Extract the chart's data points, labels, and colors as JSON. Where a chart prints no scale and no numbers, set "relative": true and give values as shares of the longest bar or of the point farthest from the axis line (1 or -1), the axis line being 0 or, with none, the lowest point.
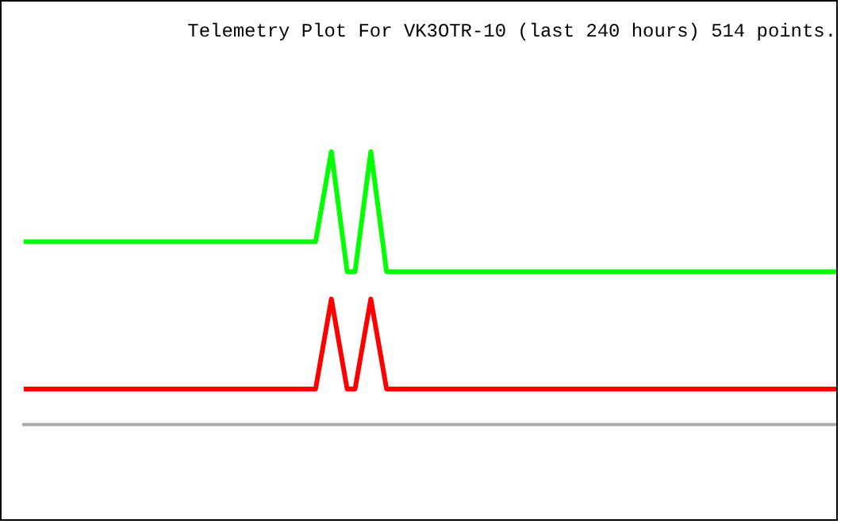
{
  "chart_data": {
    "type": "line",
    "title": "Telemetry Plot For VK3OTR-10 (last 240 hours) 514 points.",
    "relative": true,
    "grid": false,
    "legend": false,
    "marker": "none",
    "line_style": "solid",
    "categories": [
      null,
      null,
      null,
      null,
      null,
      null,
      null,
      null,
      null,
      null,
      null,
      null,
      null,
      null,
      null,
      null,
      null,
      null,
      null,
      null,
      null,
      null,
      null,
      null,
      null,
      null,
      null,
      null,
      null,
      null,
      null,
      null,
      null,
      null,
      null,
      null,
      null,
      null,
      null,
      null,
      null,
      null,
      null,
      null,
      null,
      null,
      null,
      null,
      null,
      null,
      null,
      null,
      null,
      null,
      null,
      null,
      null,
      null,
      null,
      null,
      null,
      null,
      null,
      null,
      null,
      null,
      null,
      null,
      null,
      null,
      null,
      null,
      null,
      null,
      null,
      null,
      null,
      null,
      null,
      null,
      null,
      null,
      null,
      null,
      null,
      null,
      null,
      null,
      null,
      null,
      null,
      null,
      null,
      null,
      null,
      null,
      null,
      null,
      null,
      null,
      null,
      null,
      null,
      null
    ],
    "series": [
      {
        "color": "#00ff00",
        "values": [
          0.67,
          0.67,
          0.67,
          0.67,
          0.67,
          0.67,
          0.67,
          0.67,
          0.67,
          0.67,
          0.67,
          0.67,
          0.67,
          0.67,
          0.67,
          0.67,
          0.67,
          0.67,
          0.67,
          0.67,
          0.67,
          0.67,
          0.67,
          0.67,
          0.67,
          0.67,
          0.67,
          0.67,
          0.67,
          0.67,
          0.67,
          0.67,
          0.67,
          0.67,
          0.67,
          0.67,
          0.67,
          0.67,
          null,
          1,
          null,
          0.56,
          0.56,
          null,
          1,
          null,
          0.56,
          0.56,
          0.56,
          0.56,
          0.56,
          0.56,
          0.56,
          0.56,
          0.56,
          0.56,
          0.56,
          0.56,
          0.56,
          0.56,
          0.56,
          0.56,
          0.56,
          0.56,
          0.56,
          0.56,
          0.56,
          0.56,
          0.56,
          0.56,
          0.56,
          0.56,
          0.56,
          0.56,
          0.56,
          0.56,
          0.56,
          0.56,
          0.56,
          0.56,
          0.56,
          0.56,
          0.56,
          0.56,
          0.56,
          0.56,
          0.56,
          0.56,
          0.56,
          0.56,
          0.56,
          0.56,
          0.56,
          0.56,
          0.56,
          0.56,
          0.56,
          0.56,
          0.56,
          0.56,
          0.56,
          0.56,
          0.56,
          0.56
        ]
      },
      {
        "color": "#ff0000",
        "values": [
          0.13,
          0.13,
          0.13,
          0.13,
          0.13,
          0.13,
          0.13,
          0.13,
          0.13,
          0.13,
          0.13,
          0.13,
          0.13,
          0.13,
          0.13,
          0.13,
          0.13,
          0.13,
          0.13,
          0.13,
          0.13,
          0.13,
          0.13,
          0.13,
          0.13,
          0.13,
          0.13,
          0.13,
          0.13,
          0.13,
          0.13,
          0.13,
          0.13,
          0.13,
          0.13,
          0.13,
          0.13,
          0.13,
          null,
          0.46,
          null,
          0.13,
          0.13,
          null,
          0.46,
          null,
          0.13,
          0.13,
          0.13,
          0.13,
          0.13,
          0.13,
          0.13,
          0.13,
          0.13,
          0.13,
          0.13,
          0.13,
          0.13,
          0.13,
          0.13,
          0.13,
          0.13,
          0.13,
          0.13,
          0.13,
          0.13,
          0.13,
          0.13,
          0.13,
          0.13,
          0.13,
          0.13,
          0.13,
          0.13,
          0.13,
          0.13,
          0.13,
          0.13,
          0.13,
          0.13,
          0.13,
          0.13,
          0.13,
          0.13,
          0.13,
          0.13,
          0.13,
          0.13,
          0.13,
          0.13,
          0.13,
          0.13,
          0.13,
          0.13,
          0.13,
          0.13,
          0.13,
          0.13,
          0.13,
          0.13,
          0.13,
          0.13,
          0.13
        ]
      }
    ]
  }
}
